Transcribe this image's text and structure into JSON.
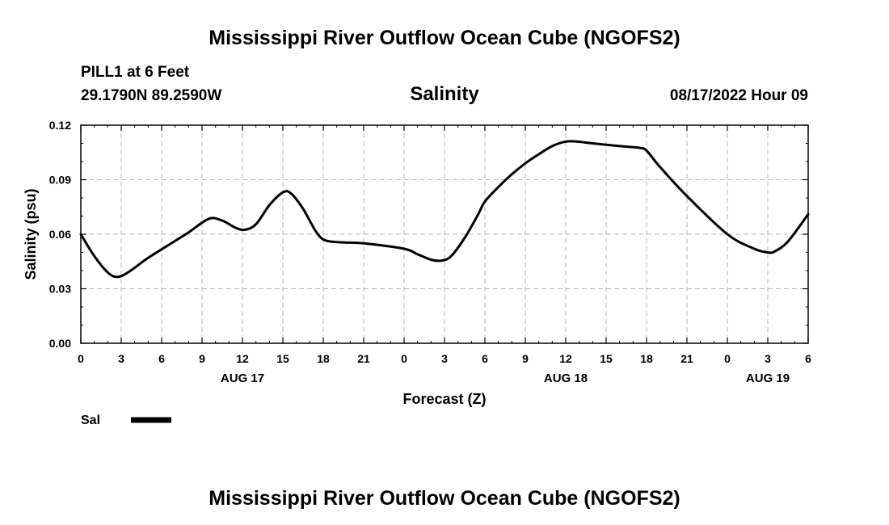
{
  "page": {
    "title": "Mississippi River Outflow Ocean Cube (NGOFS2)",
    "footer_title": "Mississippi River Outflow Ocean Cube (NGOFS2)"
  },
  "station": {
    "name_depth": "PILL1 at 6 Feet",
    "coords": "29.1790N  89.2590W"
  },
  "chart_header": {
    "subtitle": "Salinity",
    "run_time": "08/17/2022 Hour 09"
  },
  "colors": {
    "line": "#000000",
    "grid": "#b4b4b4",
    "axis": "#000000"
  },
  "chart_data": {
    "type": "line",
    "title": "Salinity",
    "xlabel": "Forecast (Z)",
    "ylabel": "Salinity (psu)",
    "xlim": [
      0,
      54
    ],
    "ylim": [
      0.0,
      0.12
    ],
    "x_ticks": [
      0,
      3,
      6,
      9,
      12,
      15,
      18,
      21,
      24,
      27,
      30,
      33,
      36,
      39,
      42,
      45,
      48,
      51,
      54
    ],
    "x_tick_labels": [
      "0",
      "3",
      "6",
      "9",
      "12",
      "15",
      "18",
      "21",
      "0",
      "3",
      "6",
      "9",
      "12",
      "15",
      "18",
      "21",
      "0",
      "3",
      "6"
    ],
    "day_labels": [
      {
        "x": 12,
        "label": "AUG 17"
      },
      {
        "x": 36,
        "label": "AUG 18"
      },
      {
        "x": 51,
        "label": "AUG 19"
      }
    ],
    "y_ticks": [
      0.0,
      0.03,
      0.06,
      0.09,
      0.12
    ],
    "y_tick_labels": [
      "0.00",
      "0.03",
      "0.06",
      "0.09",
      "0.12"
    ],
    "grid": true,
    "legend": {
      "position": "bottom-left",
      "entries": [
        {
          "label": "Sal"
        }
      ]
    },
    "series": [
      {
        "name": "Sal",
        "x": [
          0,
          1,
          2,
          2.7,
          3.5,
          5,
          6.5,
          8,
          9.5,
          10.5,
          11.5,
          12.2,
          13,
          14,
          15,
          15.6,
          16.5,
          17.5,
          18.2,
          19.5,
          21,
          24,
          25,
          26,
          26.8,
          27.5,
          28.5,
          29.5,
          30,
          31,
          32,
          33,
          34,
          35,
          36,
          36.8,
          38,
          40,
          41.5,
          42,
          43,
          45,
          48,
          50,
          51,
          51.5,
          52.5,
          54
        ],
        "values": [
          0.06,
          0.048,
          0.039,
          0.0365,
          0.039,
          0.047,
          0.054,
          0.061,
          0.0685,
          0.0675,
          0.0635,
          0.0625,
          0.0655,
          0.076,
          0.083,
          0.0825,
          0.074,
          0.061,
          0.0565,
          0.0555,
          0.055,
          0.052,
          0.049,
          0.046,
          0.0455,
          0.048,
          0.058,
          0.071,
          0.078,
          0.086,
          0.093,
          0.099,
          0.104,
          0.1085,
          0.111,
          0.111,
          0.11,
          0.1085,
          0.1075,
          0.106,
          0.097,
          0.081,
          0.06,
          0.052,
          0.05,
          0.0505,
          0.056,
          0.071
        ]
      }
    ]
  }
}
